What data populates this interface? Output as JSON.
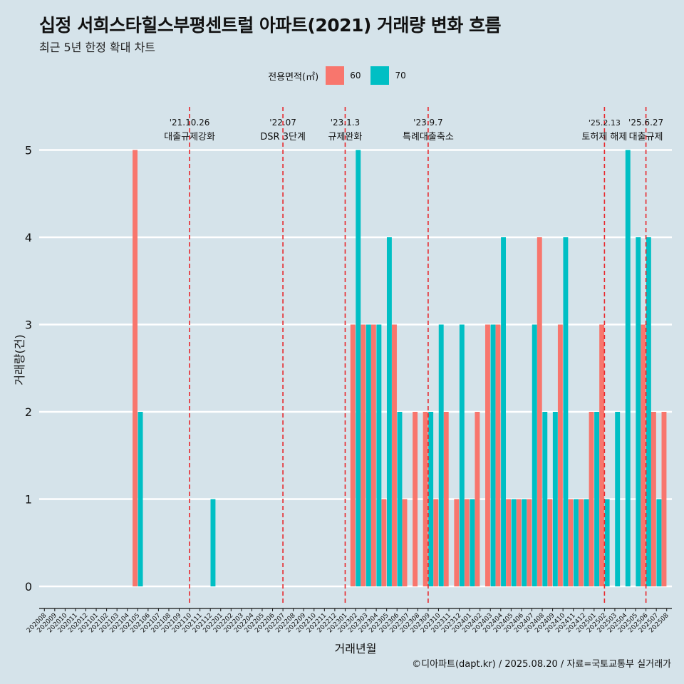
{
  "header": {
    "title": "십정 서희스타힐스부평센트럴 아파트(2021) 거래량 변화 흐름",
    "subtitle": "최근 5년 한정 확대 차트"
  },
  "legend": {
    "title": "전용면적(㎡)",
    "items": [
      {
        "label": "60",
        "color": "#f8766d"
      },
      {
        "label": "70",
        "color": "#00bfc4"
      }
    ]
  },
  "caption": "©디아파트(dapt.kr) / 2025.08.20 / 자료=국토교통부 실거래가",
  "chart_data": {
    "type": "bar",
    "xlabel": "거래년월",
    "ylabel": "거래량(건)",
    "ylim": [
      -0.2,
      5.5
    ],
    "yticks": [
      0,
      1,
      2,
      3,
      4,
      5
    ],
    "categories": [
      "202008",
      "202009",
      "202010",
      "202011",
      "202012",
      "202101",
      "202102",
      "202103",
      "202104",
      "202105",
      "202106",
      "202107",
      "202108",
      "202109",
      "202110",
      "202111",
      "202112",
      "202201",
      "202202",
      "202203",
      "202204",
      "202205",
      "202206",
      "202207",
      "202208",
      "202209",
      "202210",
      "202211",
      "202212",
      "202301",
      "202302",
      "202303",
      "202304",
      "202305",
      "202306",
      "202307",
      "202308",
      "202309",
      "202310",
      "202311",
      "202312",
      "202401",
      "202402",
      "202403",
      "202404",
      "202405",
      "202406",
      "202407",
      "202408",
      "202409",
      "202410",
      "202411",
      "202412",
      "202501",
      "202502",
      "202503",
      "202504",
      "202505",
      "202506",
      "202507",
      "202508"
    ],
    "series": [
      {
        "name": "60",
        "color": "#f8766d",
        "values": [
          0,
          0,
          0,
          0,
          0,
          0,
          0,
          0,
          0,
          5,
          0,
          0,
          0,
          0,
          0,
          0,
          0,
          0,
          0,
          0,
          0,
          0,
          0,
          0,
          0,
          0,
          0,
          0,
          0,
          0,
          3,
          3,
          3,
          1,
          3,
          1,
          2,
          2,
          1,
          2,
          1,
          1,
          2,
          3,
          3,
          1,
          1,
          1,
          4,
          1,
          3,
          1,
          1,
          2,
          3,
          0,
          0,
          0,
          3,
          2,
          2
        ]
      },
      {
        "name": "70",
        "color": "#00bfc4",
        "values": [
          0,
          0,
          0,
          0,
          0,
          0,
          0,
          0,
          0,
          2,
          0,
          0,
          0,
          0,
          0,
          0,
          1,
          0,
          0,
          0,
          0,
          0,
          0,
          0,
          0,
          0,
          0,
          0,
          0,
          0,
          5,
          3,
          3,
          4,
          2,
          0,
          0,
          2,
          3,
          0,
          3,
          1,
          0,
          3,
          4,
          1,
          1,
          3,
          2,
          2,
          4,
          1,
          1,
          2,
          1,
          2,
          5,
          4,
          4,
          1,
          0
        ]
      }
    ],
    "events": [
      {
        "date": "'21.10.26",
        "label": "대출규제강화",
        "x": "202110"
      },
      {
        "date": "'22.07",
        "label": "DSR 3단계",
        "x": "202207"
      },
      {
        "date": "'23.1.3",
        "label": "규제완화",
        "x": "202301"
      },
      {
        "date": "'23.9.7",
        "label": "특례대출축소",
        "x": "202309"
      },
      {
        "date": "'25.2.13",
        "label": "토허제 해제",
        "x": "202502"
      },
      {
        "date": "'25.6.27",
        "label": "대출규제",
        "x": "202506"
      }
    ]
  }
}
